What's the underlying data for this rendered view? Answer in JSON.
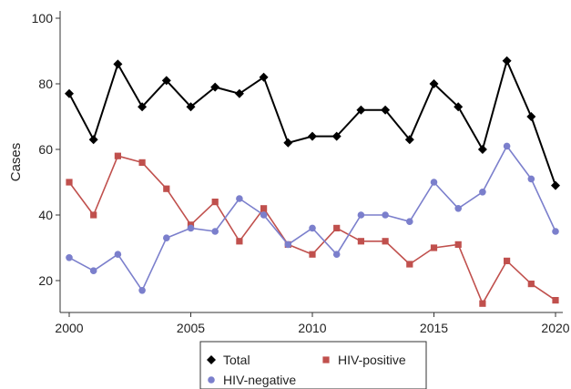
{
  "chart_data": {
    "type": "line",
    "title": "",
    "xlabel": "",
    "ylabel": "Cases",
    "x": [
      2000,
      2001,
      2002,
      2003,
      2004,
      2005,
      2006,
      2007,
      2008,
      2009,
      2010,
      2011,
      2012,
      2013,
      2014,
      2015,
      2016,
      2017,
      2018,
      2019,
      2020
    ],
    "xlim": [
      2000,
      2020
    ],
    "ylim": [
      10,
      100
    ],
    "xticks": [
      2000,
      2005,
      2010,
      2015,
      2020
    ],
    "yticks": [
      20,
      40,
      60,
      80,
      100
    ],
    "grid": false,
    "legend_position": "bottom",
    "series": [
      {
        "name": "Total",
        "color": "#000000",
        "marker": "diamond",
        "values": [
          77,
          63,
          86,
          73,
          81,
          73,
          79,
          77,
          82,
          62,
          64,
          64,
          72,
          72,
          63,
          80,
          73,
          60,
          87,
          70,
          49
        ]
      },
      {
        "name": "HIV-positive",
        "color": "#c0504d",
        "marker": "square",
        "values": [
          50,
          40,
          58,
          56,
          48,
          37,
          44,
          32,
          42,
          31,
          28,
          36,
          32,
          32,
          25,
          30,
          31,
          13,
          26,
          19,
          14
        ]
      },
      {
        "name": "HIV-negative",
        "color": "#7b7fcc",
        "marker": "circle",
        "values": [
          27,
          23,
          28,
          17,
          33,
          36,
          35,
          45,
          40,
          31,
          36,
          28,
          40,
          40,
          38,
          50,
          42,
          47,
          61,
          51,
          35
        ]
      }
    ]
  }
}
